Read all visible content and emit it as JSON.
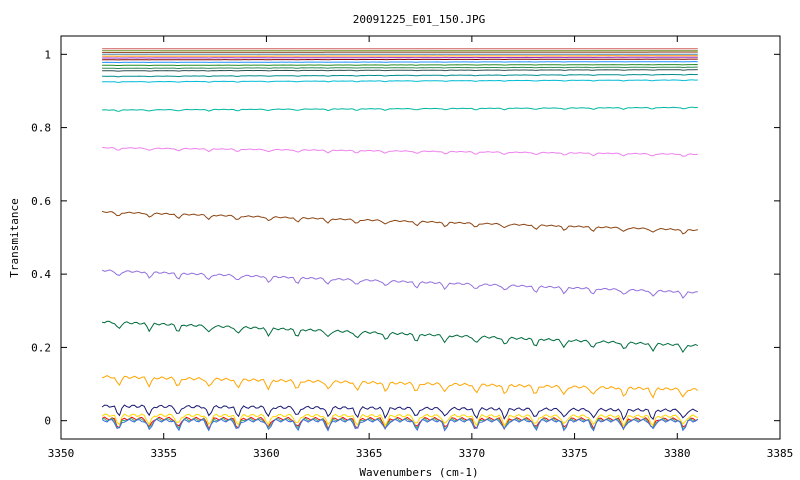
{
  "chart_data": {
    "type": "line",
    "title": "20091225_E01_150.JPG",
    "xlabel": "Wavenumbers (cm-1)",
    "ylabel": "Transmitance",
    "xlim": [
      3350,
      3385
    ],
    "ylim": [
      -0.05,
      1.05
    ],
    "x_ticks": [
      3350,
      3355,
      3360,
      3365,
      3370,
      3375,
      3380,
      3385
    ],
    "x_tick_labels": [
      "3350",
      "3355",
      "3360",
      "3365",
      "3370",
      "3375",
      "3380",
      "3385"
    ],
    "y_ticks": [
      0,
      0.2,
      0.4,
      0.6,
      0.8,
      1
    ],
    "y_tick_labels": [
      "0",
      "0.2",
      "0.4",
      "0.6",
      "0.8",
      "1"
    ],
    "x_range": [
      3352,
      3381
    ],
    "absorption_lines": [
      3352.8,
      3354.3,
      3355.7,
      3357.2,
      3358.6,
      3360.1,
      3361.5,
      3363.0,
      3364.4,
      3365.8,
      3367.3,
      3368.7,
      3370.2,
      3371.6,
      3373.1,
      3374.5,
      3375.9,
      3377.4,
      3378.8,
      3380.3
    ],
    "legend": "none",
    "grid": false,
    "series": [
      {
        "color": "#00b8a0",
        "start": 0.848,
        "end": 0.855
      },
      {
        "color": "#ee82ee",
        "start": 0.745,
        "end": 0.727
      },
      {
        "color": "#8b4513",
        "start": 0.57,
        "end": 0.52
      },
      {
        "color": "#9370db",
        "start": 0.41,
        "end": 0.35
      },
      {
        "color": "#006b3c",
        "start": 0.27,
        "end": 0.205
      },
      {
        "color": "#ffa500",
        "start": 0.12,
        "end": 0.085
      },
      {
        "color": "#191970",
        "start": 0.04,
        "end": 0.028
      },
      {
        "color": "#00bcd4",
        "start": 0.925,
        "end": 0.93
      },
      {
        "color": "#008b8b",
        "start": 0.94,
        "end": 0.945
      },
      {
        "color": "#2f4f4f",
        "start": 0.955,
        "end": 0.958
      },
      {
        "color": "#2e8b57",
        "start": 0.962,
        "end": 0.965
      },
      {
        "color": "#228b22",
        "start": 0.97,
        "end": 0.972
      },
      {
        "color": "#1e90ff",
        "start": 0.978,
        "end": 0.98
      },
      {
        "color": "#8b0000",
        "start": 0.985,
        "end": 0.987
      },
      {
        "color": "#9932cc",
        "start": 0.99,
        "end": 0.992
      },
      {
        "color": "#ff8c00",
        "start": 0.995,
        "end": 0.996
      },
      {
        "color": "#4682b4",
        "start": 1.0,
        "end": 1.0
      },
      {
        "color": "#a0522d",
        "start": 1.005,
        "end": 1.006
      },
      {
        "color": "#6b8e23",
        "start": 1.01,
        "end": 1.01
      },
      {
        "color": "#cd5c5c",
        "start": 1.015,
        "end": 1.015
      },
      {
        "color": "#ffd700",
        "start": 0.015,
        "end": 0.012
      },
      {
        "color": "#ff0000",
        "start": 0.006,
        "end": 0.004
      },
      {
        "color": "#3cb371",
        "start": 0.003,
        "end": 0.002
      },
      {
        "color": "#4169e1",
        "start": 0.0,
        "end": 0.0
      }
    ]
  }
}
